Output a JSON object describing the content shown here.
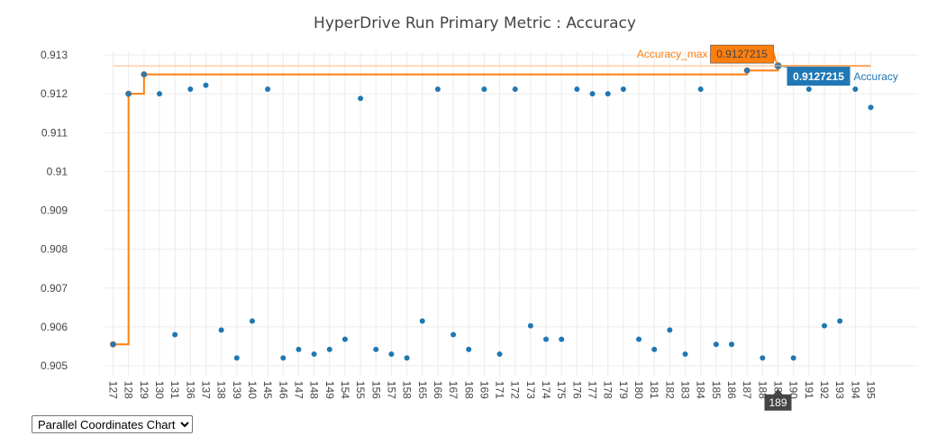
{
  "chart_data": {
    "type": "scatter",
    "title": "HyperDrive Run Primary Metric : Accuracy",
    "xlabel": "",
    "ylabel": "",
    "ylim": [
      0.90475,
      0.9131
    ],
    "grid": true,
    "y_ticks": [
      "0.913",
      "0.912",
      "0.911",
      "0.91",
      "0.909",
      "0.908",
      "0.907",
      "0.906",
      "0.905"
    ],
    "categories": [
      "127",
      "128",
      "129",
      "130",
      "131",
      "136",
      "137",
      "138",
      "139",
      "140",
      "145",
      "146",
      "147",
      "148",
      "149",
      "154",
      "155",
      "156",
      "157",
      "158",
      "165",
      "166",
      "167",
      "168",
      "169",
      "171",
      "172",
      "173",
      "174",
      "175",
      "176",
      "177",
      "178",
      "179",
      "180",
      "181",
      "182",
      "183",
      "184",
      "185",
      "186",
      "187",
      "188",
      "189",
      "190",
      "191",
      "192",
      "193",
      "194",
      "195"
    ],
    "series": [
      {
        "name": "Accuracy",
        "type": "scatter",
        "color": "#1f77b4",
        "values": [
          0.90555,
          0.912,
          0.9125,
          0.912,
          0.9058,
          0.91212,
          0.91222,
          0.90592,
          0.9052,
          0.90615,
          0.91212,
          0.9052,
          0.90542,
          0.9053,
          0.90542,
          0.90568,
          0.91188,
          0.90542,
          0.9053,
          0.9052,
          0.90615,
          0.91212,
          0.9058,
          0.90542,
          0.91212,
          0.9053,
          0.91212,
          0.90603,
          0.90568,
          0.90568,
          0.91212,
          0.912,
          0.912,
          0.91212,
          0.90568,
          0.90542,
          0.90592,
          0.9053,
          0.91212,
          0.90555,
          0.90555,
          0.9126,
          0.9052,
          0.91272,
          0.9052,
          0.91212,
          0.90603,
          0.90615,
          0.91212,
          0.91165
        ]
      },
      {
        "name": "Accuracy_max",
        "type": "step",
        "color": "#ff7f0e",
        "values": [
          0.90555,
          0.912,
          0.9125,
          0.9125,
          0.9125,
          0.9125,
          0.9125,
          0.9125,
          0.9125,
          0.9125,
          0.9125,
          0.9125,
          0.9125,
          0.9125,
          0.9125,
          0.9125,
          0.9125,
          0.9125,
          0.9125,
          0.9125,
          0.9125,
          0.9125,
          0.9125,
          0.9125,
          0.9125,
          0.9125,
          0.9125,
          0.9125,
          0.9125,
          0.9125,
          0.9125,
          0.9125,
          0.9125,
          0.9125,
          0.9125,
          0.9125,
          0.9125,
          0.9125,
          0.9125,
          0.9125,
          0.9125,
          0.9126,
          0.9126,
          0.91272,
          0.91272,
          0.91272,
          0.91272,
          0.91272,
          0.91272,
          0.91272
        ]
      }
    ],
    "hover": {
      "x_label": "189",
      "max_label": "Accuracy_max",
      "max_value": "0.9127215",
      "acc_label": "Accuracy",
      "acc_value": "0.9127215"
    }
  },
  "controls": {
    "view_select": {
      "selected": "Parallel Coordinates Chart",
      "options": [
        "Parallel Coordinates Chart"
      ]
    }
  }
}
